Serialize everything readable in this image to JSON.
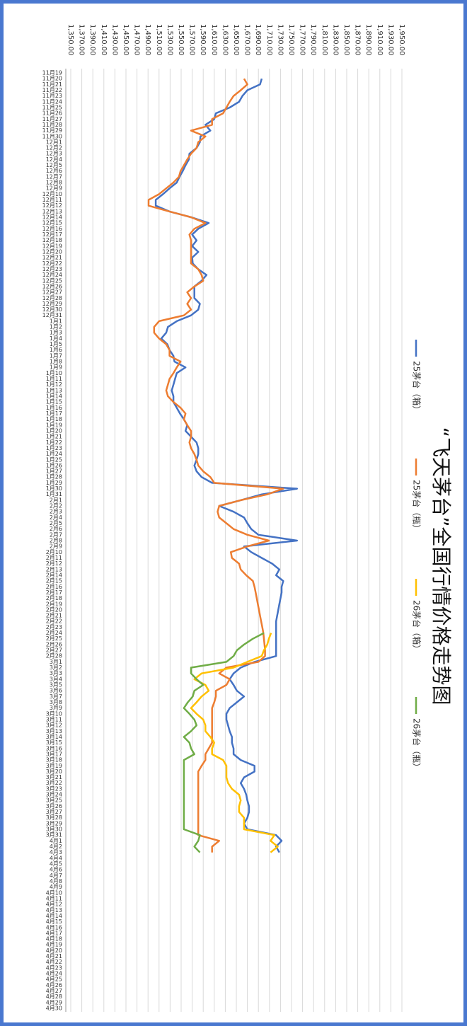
{
  "chart_data": {
    "type": "line",
    "title": "“飞天茅台”全国行情价格走势图",
    "legend": "right",
    "grid": true,
    "categories": [
      "11月19",
      "11月20",
      "11月21",
      "11月22",
      "11月23",
      "11月24",
      "11月25",
      "11月26",
      "11月27",
      "11月28",
      "11月29",
      "11月30",
      "12月1",
      "12月2",
      "12月3",
      "12月4",
      "12月5",
      "12月6",
      "12月7",
      "12月8",
      "12月9",
      "12月10",
      "12月11",
      "12月12",
      "12月13",
      "12月14",
      "12月15",
      "12月16",
      "12月17",
      "12月18",
      "12月19",
      "12月20",
      "12月21",
      "12月22",
      "12月23",
      "12月24",
      "12月25",
      "12月26",
      "12月27",
      "12月28",
      "12月29",
      "12月30",
      "12月31",
      "1月1",
      "1月2",
      "1月3",
      "1月4",
      "1月5",
      "1月6",
      "1月7",
      "1月8",
      "1月9",
      "1月10",
      "1月11",
      "1月12",
      "1月13",
      "1月14",
      "1月15",
      "1月16",
      "1月17",
      "1月18",
      "1月19",
      "1月20",
      "1月21",
      "1月22",
      "1月23",
      "1月24",
      "1月25",
      "1月26",
      "1月27",
      "1月28",
      "1月29",
      "1月30",
      "1月31",
      "2月1",
      "2月2",
      "2月3",
      "2月4",
      "2月5",
      "2月6",
      "2月7",
      "2月8",
      "2月9",
      "2月10",
      "2月11",
      "2月12",
      "2月13",
      "2月14",
      "2月15",
      "2月16",
      "2月17",
      "2月18",
      "2月19",
      "2月20",
      "2月21",
      "2月22",
      "2月23",
      "2月24",
      "2月25",
      "2月26",
      "2月27",
      "2月28",
      "3月1",
      "3月2",
      "3月3",
      "3月4",
      "3月5",
      "3月6",
      "3月7",
      "3月8",
      "3月9",
      "3月10",
      "3月11",
      "3月12",
      "3月13",
      "3月14",
      "3月15",
      "3月16",
      "3月17",
      "3月18",
      "3月19",
      "3月20",
      "3月21",
      "3月22",
      "3月23",
      "3月24",
      "3月25",
      "3月26",
      "3月27",
      "3月28",
      "3月29",
      "3月30",
      "3月31",
      "4月1",
      "4月2",
      "4月3",
      "4月4",
      "4月5",
      "4月6",
      "4月7",
      "4月8",
      "4月9",
      "4月10",
      "4月11",
      "4月12",
      "4月13",
      "4月14",
      "4月15",
      "4月16",
      "4月17",
      "4月18",
      "4月19",
      "4月20",
      "4月21",
      "4月22",
      "4月23",
      "4月24",
      "4月25",
      "4月26",
      "4月27",
      "4月28",
      "4月29",
      "4月30"
    ],
    "ylim": [
      1350,
      1950
    ],
    "yticks": [
      {
        "value": 1350,
        "label": "1,350.00"
      },
      {
        "value": 1370,
        "label": "1,370.00"
      },
      {
        "value": 1390,
        "label": "1,390.00"
      },
      {
        "value": 1410,
        "label": "1,410.00"
      },
      {
        "value": 1430,
        "label": "1,430.00"
      },
      {
        "value": 1450,
        "label": "1,450.00"
      },
      {
        "value": 1470,
        "label": "1,470.00"
      },
      {
        "value": 1490,
        "label": "1,490.00"
      },
      {
        "value": 1510,
        "label": "1,510.00"
      },
      {
        "value": 1530,
        "label": "1,530.00"
      },
      {
        "value": 1550,
        "label": "1,550.00"
      },
      {
        "value": 1570,
        "label": "1,570.00"
      },
      {
        "value": 1590,
        "label": "1,590.00"
      },
      {
        "value": 1610,
        "label": "1,610.00"
      },
      {
        "value": 1630,
        "label": "1,630.00"
      },
      {
        "value": 1650,
        "label": "1,650.00"
      },
      {
        "value": 1670,
        "label": "1,670.00"
      },
      {
        "value": 1690,
        "label": "1,690.00"
      },
      {
        "value": 1710,
        "label": "1,710.00"
      },
      {
        "value": 1730,
        "label": "1,730.00"
      },
      {
        "value": 1750,
        "label": "1,750.00"
      },
      {
        "value": 1770,
        "label": "1,770.00"
      },
      {
        "value": 1790,
        "label": "1,790.00"
      },
      {
        "value": 1810,
        "label": "1,810.00"
      },
      {
        "value": 1830,
        "label": "1,830.00"
      },
      {
        "value": 1850,
        "label": "1,850.00"
      },
      {
        "value": 1870,
        "label": "1,870.00"
      },
      {
        "value": 1890,
        "label": "1,890.00"
      },
      {
        "value": 1910,
        "label": "1,910.00"
      },
      {
        "value": 1930,
        "label": "1,930.00"
      },
      {
        "value": 1950,
        "label": "1,950.00"
      }
    ],
    "series": [
      {
        "name": "25茅台（箱）",
        "color": "#4472c4",
        "values": [
          null,
          1696,
          1693,
          1670,
          1661,
          1655,
          1638,
          1613,
          1610,
          1594,
          1603,
          1585,
          1584,
          1578,
          1565,
          1564,
          1558,
          1553,
          1547,
          1542,
          1529,
          1517,
          1504,
          1504,
          1529,
          1568,
          1600,
          1581,
          1570,
          1578,
          1570,
          1581,
          1570,
          1571,
          1581,
          1596,
          1587,
          1574,
          1574,
          1574,
          1584,
          1581,
          1568,
          1542,
          1526,
          1523,
          1514,
          1525,
          1529,
          1536,
          1538,
          1558,
          1542,
          1539,
          1536,
          1533,
          1536,
          1536,
          1542,
          1548,
          1555,
          1561,
          1558,
          1568,
          1578,
          1581,
          1581,
          1578,
          1574,
          1578,
          1587,
          1606,
          1760,
          1696,
          1658,
          1619,
          1645,
          1664,
          1670,
          1677,
          1690,
          1760,
          1664,
          1677,
          1696,
          1715,
          1728,
          1722,
          1735,
          1732,
          1732,
          1730,
          1728,
          1726,
          1724,
          1722,
          1722,
          1722,
          1722,
          1722,
          1722,
          1722,
          1683,
          1658,
          1645,
          1638,
          1645,
          1651,
          1664,
          1651,
          1638,
          1632,
          1632,
          1635,
          1638,
          1642,
          1642,
          1645,
          1645,
          1658,
          1683,
          1683,
          1664,
          1658,
          1664,
          1668,
          1670,
          1673,
          1673,
          1670,
          1664,
          1670,
          1722,
          1732,
          1722,
          1728,
          null,
          null,
          null,
          null,
          null,
          null,
          null,
          null,
          null,
          null,
          null,
          null,
          null,
          null,
          null,
          null,
          null,
          null,
          null,
          null,
          null,
          null,
          null,
          null,
          null,
          null,
          null
        ]
      },
      {
        "name": "25茅台（瓶）",
        "color": "#ed7d31",
        "values": [
          null,
          1664,
          1670,
          1658,
          1645,
          1638,
          1632,
          1626,
          1606,
          1606,
          1568,
          1594,
          1581,
          1578,
          1568,
          1561,
          1555,
          1549,
          1546,
          1536,
          1523,
          1510,
          1491,
          1491,
          1529,
          1568,
          1594,
          1574,
          1565,
          1568,
          1568,
          1568,
          1568,
          1568,
          1581,
          1587,
          1590,
          1574,
          1561,
          1568,
          1561,
          1568,
          1555,
          1510,
          1501,
          1501,
          1510,
          1523,
          1529,
          1529,
          1549,
          1542,
          1536,
          1529,
          1526,
          1523,
          1526,
          1536,
          1549,
          1558,
          1555,
          1561,
          1568,
          1568,
          1565,
          1568,
          1574,
          1578,
          1581,
          1590,
          1603,
          1610,
          1735,
          1706,
          1658,
          1619,
          1616,
          1619,
          1632,
          1645,
          1670,
          1709,
          1670,
          1640,
          1642,
          1655,
          1658,
          1668,
          1680,
          1683,
          1685,
          1687,
          1689,
          1691,
          1693,
          1695,
          1697,
          1699,
          1700,
          1701,
          1702,
          1702,
          1690,
          1632,
          1619,
          1638,
          1632,
          1613,
          1613,
          1610,
          1606,
          1606,
          1606,
          1606,
          1606,
          1606,
          1606,
          1600,
          1594,
          1594,
          1587,
          1581,
          1581,
          1581,
          1581,
          1581,
          1581,
          1581,
          1581,
          1581,
          1581,
          1581,
          1581,
          1619,
          1606,
          1606,
          null,
          null,
          null,
          null,
          null,
          null,
          null,
          null,
          null,
          null,
          null,
          null,
          null,
          null,
          null,
          null,
          null,
          null,
          null,
          null,
          null,
          null,
          null,
          null,
          null,
          null,
          null
        ]
      },
      {
        "name": "26茅台（箱）",
        "color": "#ffc000",
        "values": [
          null,
          null,
          null,
          null,
          null,
          null,
          null,
          null,
          null,
          null,
          null,
          null,
          null,
          null,
          null,
          null,
          null,
          null,
          null,
          null,
          null,
          null,
          null,
          null,
          null,
          null,
          null,
          null,
          null,
          null,
          null,
          null,
          null,
          null,
          null,
          null,
          null,
          null,
          null,
          null,
          null,
          null,
          null,
          null,
          null,
          null,
          null,
          null,
          null,
          null,
          null,
          null,
          null,
          null,
          null,
          null,
          null,
          null,
          null,
          null,
          null,
          null,
          null,
          null,
          null,
          null,
          null,
          null,
          null,
          null,
          null,
          null,
          null,
          null,
          null,
          null,
          null,
          null,
          null,
          null,
          null,
          null,
          null,
          null,
          null,
          null,
          null,
          null,
          null,
          null,
          null,
          null,
          null,
          null,
          null,
          null,
          null,
          1713,
          1709,
          1706,
          1700,
          1696,
          1670,
          1645,
          1587,
          1574,
          1594,
          1600,
          1587,
          1578,
          1568,
          1578,
          1590,
          1594,
          1594,
          1603,
          1610,
          1606,
          1606,
          1626,
          1632,
          1632,
          1632,
          1635,
          1642,
          1655,
          1658,
          1655,
          1655,
          1664,
          1664,
          1664,
          1719,
          1712,
          1725,
          1712,
          null,
          null,
          null,
          null,
          null,
          null,
          null,
          null,
          null,
          null,
          null,
          null,
          null,
          null,
          null,
          null,
          null,
          null,
          null,
          null,
          null,
          null,
          null,
          null,
          null,
          null,
          null
        ]
      },
      {
        "name": "26茅台（瓶）",
        "color": "#70ad47",
        "values": [
          null,
          null,
          null,
          null,
          null,
          null,
          null,
          null,
          null,
          null,
          null,
          null,
          null,
          null,
          null,
          null,
          null,
          null,
          null,
          null,
          null,
          null,
          null,
          null,
          null,
          null,
          null,
          null,
          null,
          null,
          null,
          null,
          null,
          null,
          null,
          null,
          null,
          null,
          null,
          null,
          null,
          null,
          null,
          null,
          null,
          null,
          null,
          null,
          null,
          null,
          null,
          null,
          null,
          null,
          null,
          null,
          null,
          null,
          null,
          null,
          null,
          null,
          null,
          null,
          null,
          null,
          null,
          null,
          null,
          null,
          null,
          null,
          null,
          null,
          null,
          null,
          null,
          null,
          null,
          null,
          null,
          null,
          null,
          null,
          null,
          null,
          null,
          null,
          null,
          null,
          null,
          null,
          null,
          null,
          null,
          null,
          null,
          1700,
          1680,
          1664,
          1651,
          1645,
          1632,
          1568,
          1568,
          1578,
          1590,
          1574,
          1571,
          1562,
          1555,
          1565,
          1574,
          1578,
          1568,
          1555,
          1565,
          1568,
          1574,
          1555,
          1555,
          1555,
          1555,
          1555,
          1555,
          1555,
          1555,
          1555,
          1555,
          1555,
          1555,
          1555,
          1584,
          1581,
          1574,
          1584,
          null,
          null,
          null,
          null,
          null,
          null,
          null,
          null,
          null,
          null,
          null,
          null,
          null,
          null,
          null,
          null,
          null,
          null,
          null,
          null,
          null,
          null,
          null,
          null,
          null,
          null,
          null
        ]
      }
    ]
  }
}
